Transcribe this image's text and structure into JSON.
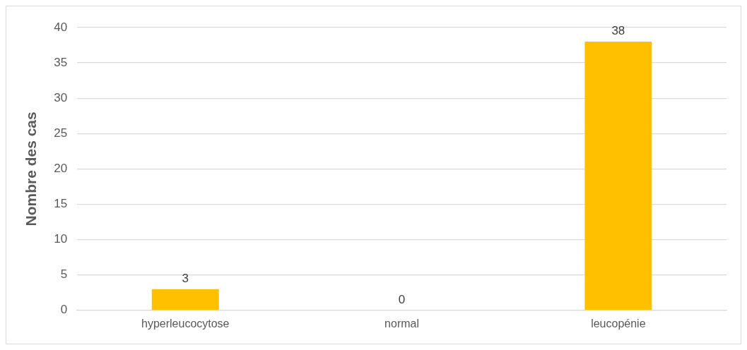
{
  "chart_data": {
    "type": "bar",
    "ylabel": "Nombre des cas",
    "categories": [
      "hyperleucocytose",
      "normal",
      "leucopénie"
    ],
    "values": [
      3,
      0,
      38
    ],
    "color": "#ffc000",
    "ylim": [
      0,
      40
    ],
    "yticks": [
      0,
      5,
      10,
      15,
      20,
      25,
      30,
      35,
      40
    ],
    "grid": "y",
    "data_labels": true
  }
}
